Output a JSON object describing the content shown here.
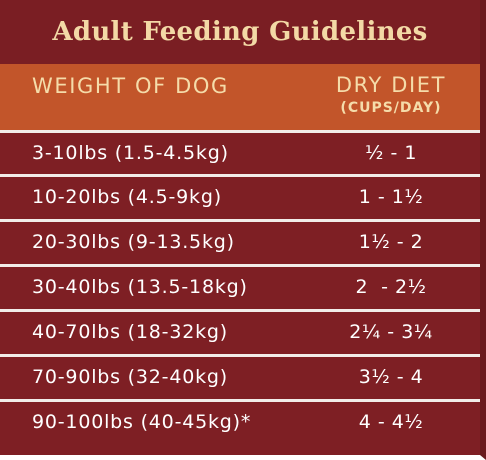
{
  "title": "Adult Feeding Guidelines",
  "header": {
    "weight": "WEIGHT OF DOG",
    "diet": "DRY DIET",
    "unit": "(CUPS/DAY)"
  },
  "rows": [
    {
      "weight": "3-10lbs (1.5-4.5kg)",
      "cups": "½ - 1"
    },
    {
      "weight": "10-20lbs (4.5-9kg)",
      "cups": "1 - 1½"
    },
    {
      "weight": "20-30lbs (9-13.5kg)",
      "cups": "1½ - 2"
    },
    {
      "weight": "30-40lbs (13.5-18kg)",
      "cups": "2  - 2½"
    },
    {
      "weight": "40-70lbs (18-32kg)",
      "cups": "2¼ - 3¼"
    },
    {
      "weight": "70-90lbs (32-40kg)",
      "cups": "3½ - 4"
    },
    {
      "weight": "90-100lbs (40-45kg)*",
      "cups": "4 - 4½"
    }
  ],
  "colors": {
    "title_bg": "#7a1e23",
    "header_bg": "#c2552a",
    "row_bg": "#7e1f24",
    "title_text": "#f3d9a6",
    "row_text": "#ffffff",
    "separator": "#f2ece9"
  }
}
